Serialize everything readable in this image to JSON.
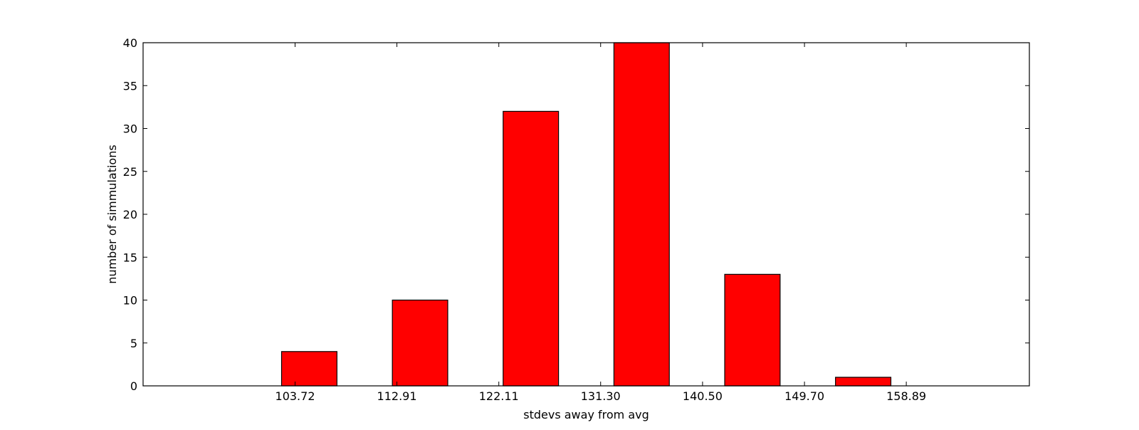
{
  "chart_data": {
    "type": "bar",
    "title": "",
    "xlabel": "stdevs away from avg",
    "ylabel": "number of simmulations",
    "ylim": [
      0,
      40
    ],
    "xlim": [
      90.0,
      170.0
    ],
    "yticks": [
      0,
      5,
      10,
      15,
      20,
      25,
      30,
      35,
      40
    ],
    "xticks": [
      103.72,
      112.91,
      122.11,
      131.3,
      140.5,
      149.7,
      158.89
    ],
    "xtick_labels": [
      "103.72",
      "112.91",
      "122.11",
      "131.30",
      "140.50",
      "149.70",
      "158.89"
    ],
    "bar_width": 5.0,
    "bars": [
      {
        "x_start": 92.5,
        "value": 0
      },
      {
        "x_start": 102.5,
        "value": 4
      },
      {
        "x_start": 112.5,
        "value": 10
      },
      {
        "x_start": 122.5,
        "value": 32
      },
      {
        "x_start": 132.5,
        "value": 40
      },
      {
        "x_start": 142.5,
        "value": 13
      },
      {
        "x_start": 152.5,
        "value": 1
      }
    ],
    "bar_color": "#ff0000",
    "edge_color": "#000000",
    "grid": false,
    "legend": "none"
  }
}
